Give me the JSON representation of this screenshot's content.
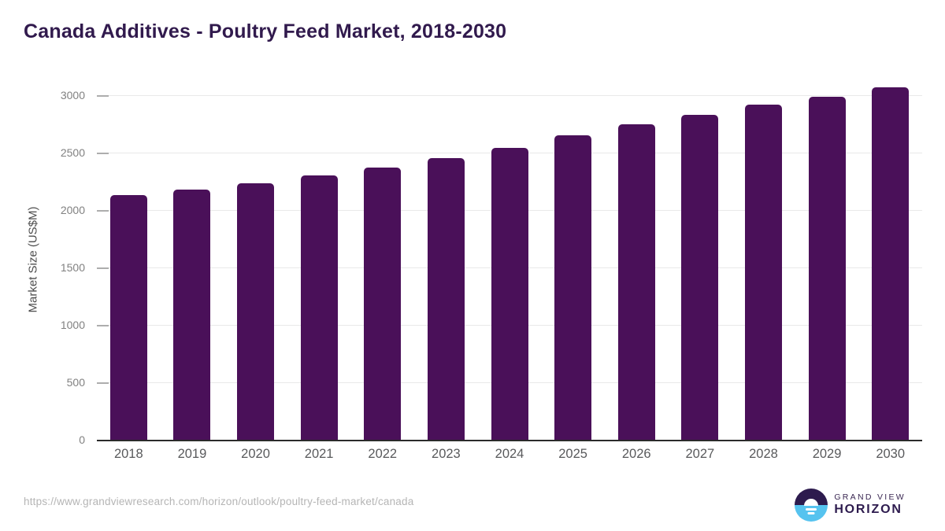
{
  "header": {
    "title": "Canada Additives - Poultry Feed Market, 2018-2030"
  },
  "chart_data": {
    "type": "bar",
    "title": "Canada Additives - Poultry Feed Market, 2018-2030",
    "categories": [
      "2018",
      "2019",
      "2020",
      "2021",
      "2022",
      "2023",
      "2024",
      "2025",
      "2026",
      "2027",
      "2028",
      "2029",
      "2030"
    ],
    "values": [
      2135,
      2185,
      2240,
      2310,
      2375,
      2460,
      2550,
      2660,
      2750,
      2835,
      2925,
      2990,
      3075
    ],
    "xlabel": "",
    "ylabel": "Market Size (US$M)",
    "ylim": [
      0,
      3150
    ],
    "yticks": [
      0,
      500,
      1000,
      1500,
      2000,
      2500,
      3000
    ],
    "grid": "horizontal",
    "legend": "none",
    "bar_color": "#4a1059"
  },
  "footer": {
    "source_url": "https://www.grandviewresearch.com/horizon/outlook/poultry-feed-market/canada",
    "logo": {
      "line1": "GRAND VIEW",
      "line2": "HORIZON"
    }
  },
  "colors": {
    "bar": "#4a1059",
    "title": "#311a4d",
    "logo_navy": "#2d1b4e",
    "logo_blue": "#56c3ef",
    "gridline": "#e9e9e9",
    "axis_line": "#2b2b2b",
    "tick_label": "#818181"
  }
}
